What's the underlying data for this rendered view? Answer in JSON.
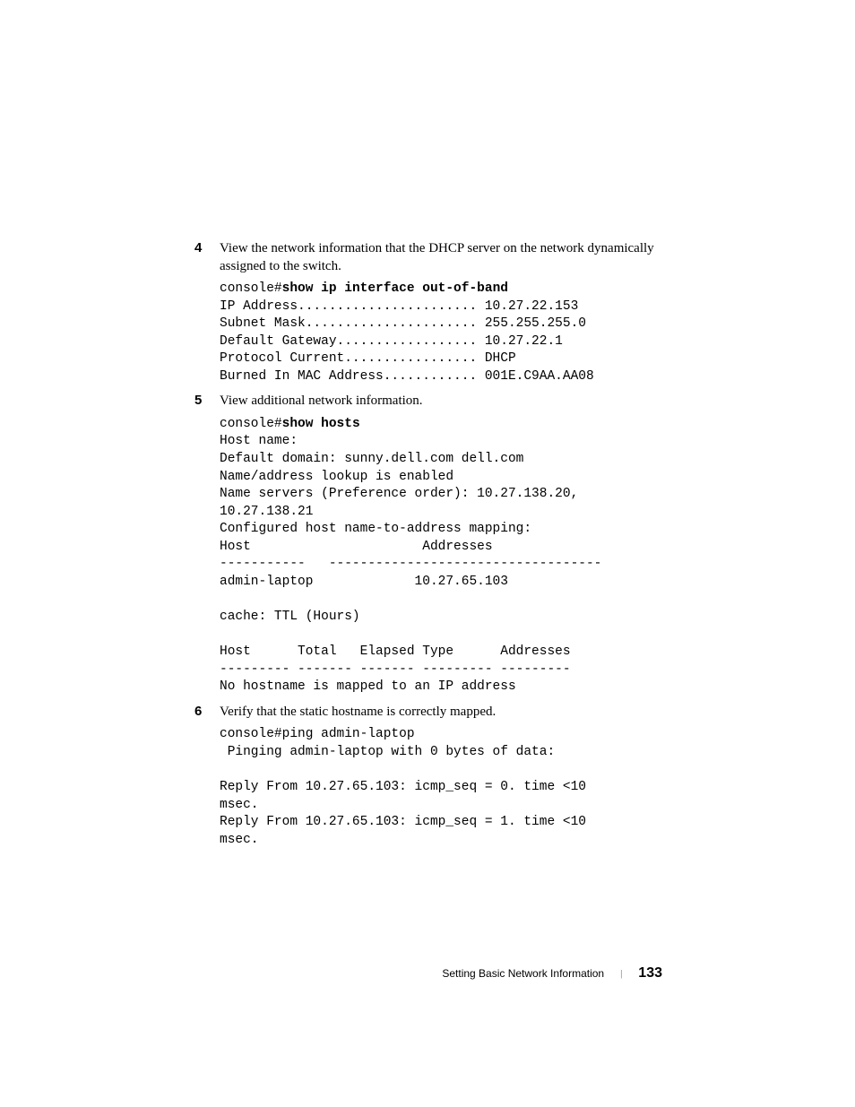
{
  "items": [
    {
      "number": "4",
      "text": "View the network information that the DHCP server on the network dynamically assigned to the switch.",
      "code_prompt": "console#",
      "code_command": "show ip interface out-of-band",
      "code_output": "\nIP Address....................... 10.27.22.153\nSubnet Mask...................... 255.255.255.0\nDefault Gateway.................. 10.27.22.1\nProtocol Current................. DHCP\nBurned In MAC Address............ 001E.C9AA.AA08"
    },
    {
      "number": "5",
      "text": "View additional network information.",
      "code_prompt": "console#",
      "code_command": "show hosts",
      "code_output": "\nHost name:\nDefault domain: sunny.dell.com dell.com\nName/address lookup is enabled\nName servers (Preference order): 10.27.138.20, \n10.27.138.21\nConfigured host name-to-address mapping:\nHost                      Addresses\n-----------   -----------------------------------\nadmin-laptop             10.27.65.103\n\ncache: TTL (Hours)\n\nHost      Total   Elapsed Type      Addresses\n--------- ------- ------- --------- ---------\nNo hostname is mapped to an IP address"
    },
    {
      "number": "6",
      "text": "Verify that the static hostname is correctly mapped.",
      "code_prompt": "",
      "code_command": "",
      "code_output": "console#ping admin-laptop\n Pinging admin-laptop with 0 bytes of data:\n\nReply From 10.27.65.103: icmp_seq = 0. time <10 \nmsec.\nReply From 10.27.65.103: icmp_seq = 1. time <10 \nmsec."
    }
  ],
  "footer": {
    "title": "Setting Basic Network Information",
    "page": "133"
  }
}
